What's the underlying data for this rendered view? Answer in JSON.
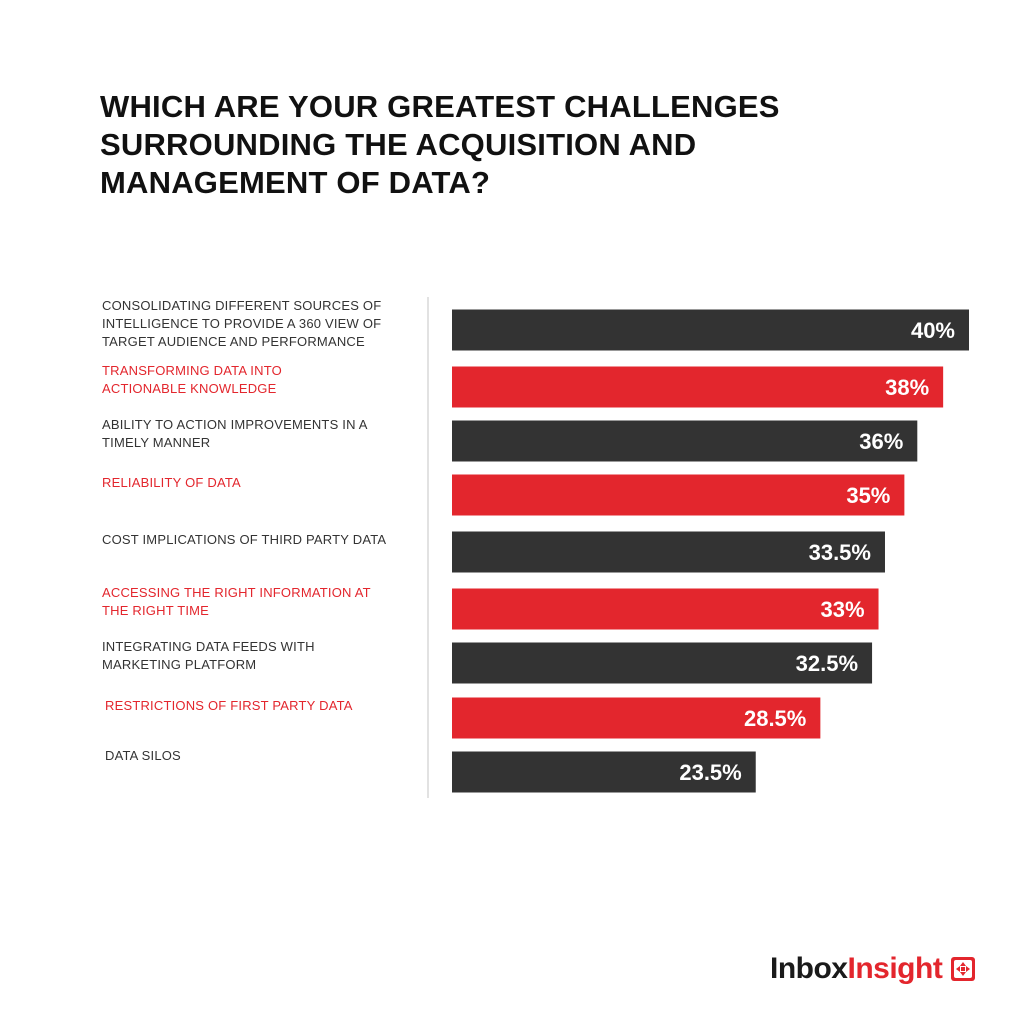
{
  "title": "WHICH ARE YOUR GREATEST CHALLENGES\nSURROUNDING THE ACQUISITION AND\nMANAGEMENT OF DATA?",
  "brand": {
    "part1": "Inbox",
    "part2": "Insight",
    "icon": "inboxinsight-logo-icon"
  },
  "colors": {
    "dark": "#333333",
    "red": "#e3262d",
    "label_red": "#e3262d",
    "title": "#111111"
  },
  "chart_data": {
    "type": "bar",
    "orientation": "horizontal",
    "categories": [
      [
        "CONSOLIDATING DIFFERENT SOURCES OF",
        "INTELLIGENCE TO PROVIDE A 360 VIEW OF",
        "TARGET AUDIENCE AND PERFORMANCE"
      ],
      [
        "TRANSFORMING DATA INTO",
        "ACTIONABLE KNOWLEDGE"
      ],
      [
        "ABILITY TO ACTION IMPROVEMENTS IN A",
        "TIMELY MANNER"
      ],
      [
        "RELIABILITY OF DATA"
      ],
      [
        "COST IMPLICATIONS OF THIRD PARTY DATA"
      ],
      [
        "ACCESSING THE RIGHT INFORMATION AT",
        "THE RIGHT TIME"
      ],
      [
        "INTEGRATING DATA FEEDS WITH",
        "MARKETING PLATFORM"
      ],
      [
        "RESTRICTIONS OF FIRST PARTY DATA"
      ],
      [
        "DATA SILOS"
      ]
    ],
    "values": [
      40,
      38,
      36,
      35,
      33.5,
      33,
      32.5,
      28.5,
      23.5
    ],
    "value_labels": [
      "40%",
      "38%",
      "36%",
      "35%",
      "33.5%",
      "33%",
      "32.5%",
      "28.5%",
      "23.5%"
    ],
    "bar_colors": [
      "dark",
      "red",
      "dark",
      "red",
      "dark",
      "red",
      "dark",
      "red",
      "dark"
    ],
    "unit": "%",
    "xlim": [
      0,
      40
    ],
    "grid": false,
    "legend": "none"
  }
}
